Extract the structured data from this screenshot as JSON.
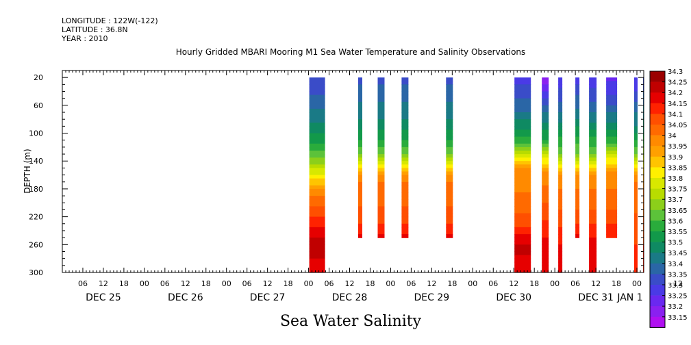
{
  "header": {
    "longitude": "LONGITUDE : 122W(-122)",
    "latitude": "LATITUDE : 36.8N",
    "year": "YEAR : 2010"
  },
  "chart_data": {
    "type": "heatmap",
    "title": "Hourly Gridded MBARI Mooring M1 Sea Water Temperature and Salinity Observations",
    "ylabel": "DEPTH (m)",
    "bottom_title": "Sea Water Salinity",
    "ylim": [
      300,
      10
    ],
    "y_ticks": [
      20,
      60,
      100,
      140,
      180,
      220,
      260,
      300
    ],
    "hour_ticks": [
      "06",
      "12",
      "18",
      "00",
      "06",
      "12",
      "18",
      "00",
      "06",
      "12",
      "18",
      "00",
      "06",
      "12",
      "18",
      "00",
      "06",
      "12",
      "18",
      "00",
      "06",
      "12",
      "18",
      "00",
      "06",
      "12",
      "18",
      "00",
      "06",
      "12",
      "18",
      "00"
    ],
    "day_labels": [
      "DEC 25",
      "DEC 26",
      "DEC 27",
      "DEC 28",
      "DEC 29",
      "DEC 30",
      "DEC 31",
      "JAN 1"
    ],
    "time_range_hours": [
      0,
      170
    ],
    "colorbar": {
      "levels": [
        "34.3",
        "34.25",
        "34.2",
        "34.15",
        "34.1",
        "34.05",
        "34",
        "33.95",
        "33.9",
        "33.85",
        "33.8",
        "33.75",
        "33.7",
        "33.65",
        "33.6",
        "33.55",
        "33.5",
        "33.45",
        "33.4",
        "33.35",
        "33.3",
        "33.25",
        "33.2",
        "33.15"
      ],
      "colors": [
        "#9b0000",
        "#c00000",
        "#e60000",
        "#ff2200",
        "#ff4f00",
        "#ff6a00",
        "#ff8a00",
        "#ffa000",
        "#ffc400",
        "#fff000",
        "#d8e800",
        "#b8dc00",
        "#8ccf1a",
        "#5cc23a",
        "#2aac3c",
        "#12994a",
        "#0f8a62",
        "#1a7a86",
        "#2a66a6",
        "#3a4cc8",
        "#4a3ae6",
        "#6a28f0",
        "#8a20f0",
        "#b010f0"
      ]
    },
    "profiles": [
      {
        "name": "A",
        "start_hour": 72.2,
        "end_hour": 76.8,
        "max_depth": 300,
        "stops": [
          [
            20,
            33.35
          ],
          [
            80,
            33.48
          ],
          [
            110,
            33.58
          ],
          [
            140,
            33.72
          ],
          [
            165,
            33.9
          ],
          [
            185,
            34.03
          ],
          [
            210,
            34.12
          ],
          [
            235,
            34.2
          ],
          [
            260,
            34.28
          ],
          [
            300,
            34.22
          ]
        ]
      },
      {
        "name": "B",
        "start_hour": 86.5,
        "end_hour": 87.7,
        "max_depth": 250,
        "stops": [
          [
            20,
            33.38
          ],
          [
            80,
            33.5
          ],
          [
            130,
            33.68
          ],
          [
            150,
            33.92
          ],
          [
            170,
            34.05
          ],
          [
            220,
            34.12
          ],
          [
            250,
            34.22
          ]
        ]
      },
      {
        "name": "C",
        "start_hour": 92.2,
        "end_hour": 94.2,
        "max_depth": 250,
        "stops": [
          [
            20,
            33.38
          ],
          [
            80,
            33.5
          ],
          [
            130,
            33.68
          ],
          [
            150,
            33.92
          ],
          [
            170,
            34.05
          ],
          [
            220,
            34.12
          ],
          [
            250,
            34.22
          ]
        ]
      },
      {
        "name": "D",
        "start_hour": 99.2,
        "end_hour": 101.2,
        "max_depth": 250,
        "stops": [
          [
            20,
            33.38
          ],
          [
            80,
            33.5
          ],
          [
            130,
            33.68
          ],
          [
            150,
            33.92
          ],
          [
            170,
            34.05
          ],
          [
            220,
            34.12
          ],
          [
            250,
            34.22
          ]
        ]
      },
      {
        "name": "E",
        "start_hour": 112.2,
        "end_hour": 114.2,
        "max_depth": 250,
        "stops": [
          [
            20,
            33.38
          ],
          [
            80,
            33.5
          ],
          [
            130,
            33.68
          ],
          [
            150,
            33.92
          ],
          [
            170,
            34.05
          ],
          [
            220,
            34.12
          ],
          [
            250,
            34.22
          ]
        ]
      },
      {
        "name": "F",
        "start_hour": 132.2,
        "end_hour": 137.0,
        "max_depth": 300,
        "stops": [
          [
            20,
            33.32
          ],
          [
            70,
            33.45
          ],
          [
            110,
            33.62
          ],
          [
            135,
            33.85
          ],
          [
            150,
            34.0
          ],
          [
            210,
            34.08
          ],
          [
            235,
            34.15
          ],
          [
            265,
            34.27
          ],
          [
            300,
            34.2
          ]
        ]
      },
      {
        "name": "G",
        "start_hour": 140.2,
        "end_hour": 142.2,
        "max_depth": 300,
        "stops": [
          [
            20,
            33.2
          ],
          [
            60,
            33.4
          ],
          [
            110,
            33.6
          ],
          [
            140,
            33.88
          ],
          [
            160,
            34.02
          ],
          [
            210,
            34.12
          ],
          [
            250,
            34.2
          ],
          [
            300,
            34.22
          ]
        ]
      },
      {
        "name": "H",
        "start_hour": 145.0,
        "end_hour": 146.2,
        "max_depth": 300,
        "stops": [
          [
            20,
            33.3
          ],
          [
            80,
            33.48
          ],
          [
            130,
            33.7
          ],
          [
            160,
            34.02
          ],
          [
            220,
            34.12
          ],
          [
            260,
            34.2
          ],
          [
            300,
            34.2
          ]
        ]
      },
      {
        "name": "I",
        "start_hour": 150.0,
        "end_hour": 151.2,
        "max_depth": 250,
        "stops": [
          [
            20,
            33.32
          ],
          [
            80,
            33.5
          ],
          [
            130,
            33.7
          ],
          [
            160,
            34.02
          ],
          [
            220,
            34.12
          ],
          [
            250,
            34.22
          ]
        ]
      },
      {
        "name": "J",
        "start_hour": 154.0,
        "end_hour": 156.2,
        "max_depth": 300,
        "stops": [
          [
            20,
            33.3
          ],
          [
            80,
            33.48
          ],
          [
            130,
            33.7
          ],
          [
            160,
            34.02
          ],
          [
            220,
            34.12
          ],
          [
            260,
            34.22
          ],
          [
            300,
            34.2
          ]
        ]
      },
      {
        "name": "K",
        "start_hour": 159.0,
        "end_hour": 162.2,
        "max_depth": 250,
        "stops": [
          [
            20,
            33.28
          ],
          [
            60,
            33.4
          ],
          [
            110,
            33.62
          ],
          [
            140,
            33.88
          ],
          [
            160,
            34.02
          ],
          [
            220,
            34.12
          ],
          [
            250,
            34.2
          ]
        ]
      },
      {
        "name": "L",
        "start_hour": 167.2,
        "end_hour": 168.2,
        "max_depth": 300,
        "stops": [
          [
            20,
            33.3
          ],
          [
            90,
            33.5
          ],
          [
            130,
            33.7
          ],
          [
            150,
            33.92
          ],
          [
            170,
            34.05
          ],
          [
            260,
            34.15
          ],
          [
            300,
            34.2
          ]
        ]
      },
      {
        "name": "M",
        "start_hour": 169.8,
        "end_hour": 170.0,
        "max_depth": 300,
        "stops": [
          [
            20,
            33.35
          ],
          [
            100,
            33.55
          ],
          [
            150,
            33.9
          ],
          [
            180,
            34.05
          ],
          [
            300,
            34.2
          ]
        ]
      }
    ]
  }
}
